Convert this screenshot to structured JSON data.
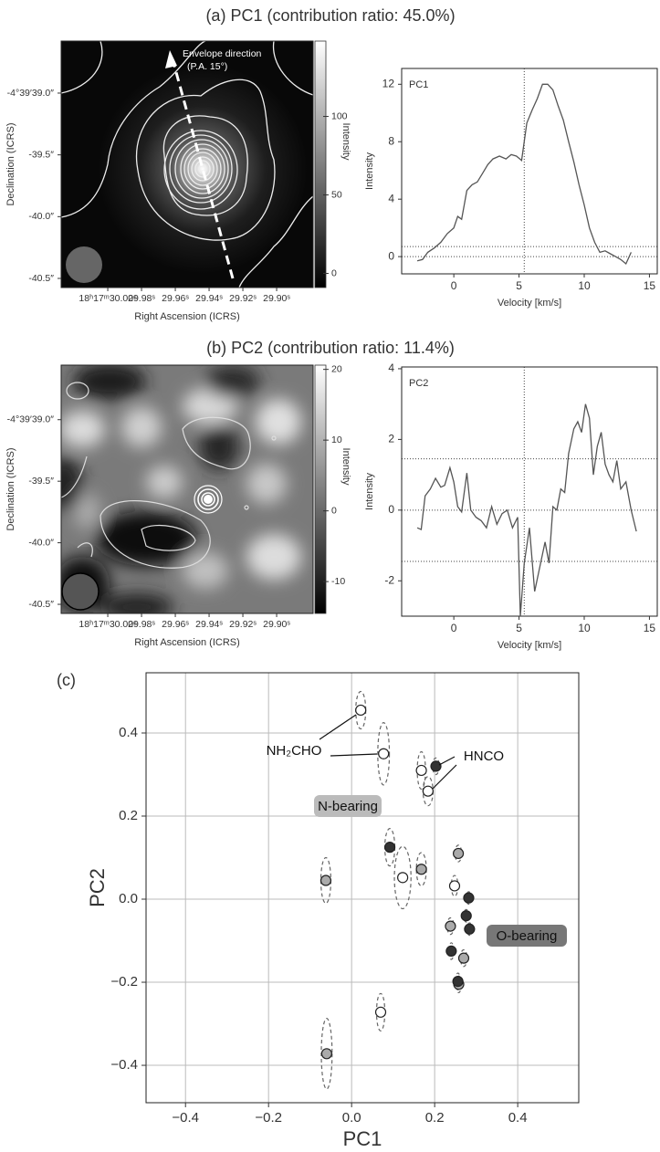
{
  "chart_data": [
    {
      "type": "image",
      "title": "(a) PC1 (contribution ratio: 45.0%)",
      "xlabel": "Right Ascension (ICRS)",
      "ylabel": "Declination (ICRS)",
      "xlim": [
        30.0276,
        29.8784
      ],
      "ylim": [
        40.574,
        38.579
      ],
      "xticks": [
        {
          "value": 30.0,
          "label": "18ʰ17ᵐ30.00ˢ"
        },
        {
          "value": 29.98,
          "label": "29.98ˢ"
        },
        {
          "value": 29.96,
          "label": "29.96ˢ"
        },
        {
          "value": 29.94,
          "label": "29.94ˢ"
        },
        {
          "value": 29.92,
          "label": "29.92ˢ"
        },
        {
          "value": 29.9,
          "label": "29.90ˢ"
        }
      ],
      "yticks": [
        {
          "value": 39.0,
          "label": "-4°39′39.0″"
        },
        {
          "value": 39.5,
          "label": "-39.5″"
        },
        {
          "value": 40.0,
          "label": "-40.0″"
        },
        {
          "value": 40.5,
          "label": "-40.5″"
        }
      ],
      "colorbar_label": "Intensity",
      "clim": [
        -9,
        148
      ],
      "cticks": [
        0,
        50,
        100
      ],
      "annotations": [
        "Envelope direction",
        "(P.A. 15°)"
      ]
    },
    {
      "type": "line",
      "label": "PC1",
      "xlabel": "Velocity [km/s]",
      "ylabel": "Intensity",
      "color": "#555555",
      "xlim": [
        -4,
        15.6
      ],
      "ylim": [
        -1.2,
        13.1
      ],
      "xticks": [
        0,
        5,
        10,
        15
      ],
      "yticks": [
        0,
        4,
        8,
        12
      ],
      "vlines": [
        5.4
      ],
      "hlines": [
        0,
        0.7
      ],
      "x": [
        -2.8,
        -2.4,
        -2,
        -1.5,
        -1,
        -0.5,
        0,
        0.3,
        0.6,
        1,
        1.4,
        1.8,
        2.2,
        2.6,
        3,
        3.5,
        4,
        4.4,
        4.8,
        5.2,
        5.6,
        6,
        6.4,
        6.8,
        7.2,
        7.6,
        8,
        8.4,
        8.8,
        9.2,
        9.6,
        10,
        10.4,
        10.8,
        11.2,
        11.6,
        12,
        12.4,
        12.8,
        13.2,
        13.6
      ],
      "y": [
        -0.3,
        -0.2,
        0.3,
        0.6,
        1.0,
        1.6,
        2.0,
        2.8,
        2.6,
        4.6,
        5.0,
        5.2,
        5.8,
        6.4,
        6.8,
        7.0,
        6.8,
        7.1,
        7.0,
        6.7,
        9.3,
        10.2,
        11.0,
        12.0,
        12.0,
        11.6,
        10.5,
        9.5,
        8.0,
        6.6,
        5.0,
        3.6,
        2.0,
        1.0,
        0.3,
        0.4,
        0.2,
        0.0,
        -0.2,
        -0.5,
        0.3
      ]
    },
    {
      "type": "image",
      "title": "(b) PC2 (contribution ratio: 11.4%)",
      "xlabel": "Right Ascension (ICRS)",
      "ylabel": "Declination (ICRS)",
      "xlim": [
        30.0276,
        29.8784
      ],
      "ylim": [
        40.574,
        38.557
      ],
      "xticks": [
        {
          "value": 30.0,
          "label": "18ʰ17ᵐ30.00ˢ"
        },
        {
          "value": 29.98,
          "label": "29.98ˢ"
        },
        {
          "value": 29.96,
          "label": "29.96ˢ"
        },
        {
          "value": 29.94,
          "label": "29.94ˢ"
        },
        {
          "value": 29.92,
          "label": "29.92ˢ"
        },
        {
          "value": 29.9,
          "label": "29.90ˢ"
        }
      ],
      "yticks": [
        {
          "value": 39.0,
          "label": "-4°39′39.0″"
        },
        {
          "value": 39.5,
          "label": "-39.5″"
        },
        {
          "value": 40.0,
          "label": "-40.0″"
        },
        {
          "value": 40.5,
          "label": "-40.5″"
        }
      ],
      "colorbar_label": "Intensity",
      "clim": [
        -14.5,
        20.6
      ],
      "cticks": [
        -10,
        0,
        10,
        20
      ]
    },
    {
      "type": "line",
      "label": "PC2",
      "xlabel": "Velocity [km/s]",
      "ylabel": "Intensity",
      "color": "#555555",
      "xlim": [
        -4,
        15.6
      ],
      "ylim": [
        -3,
        4.05
      ],
      "xticks": [
        0,
        5,
        10,
        15
      ],
      "yticks": [
        -2,
        0,
        2,
        4
      ],
      "vlines": [
        5.4
      ],
      "hlines": [
        0,
        1.45,
        -1.45
      ],
      "x": [
        -2.8,
        -2.5,
        -2.2,
        -1.8,
        -1.4,
        -1,
        -0.7,
        -0.3,
        0,
        0.3,
        0.6,
        1.0,
        1.3,
        1.7,
        2.1,
        2.5,
        2.9,
        3.3,
        3.7,
        4.1,
        4.5,
        4.9,
        5.1,
        5.4,
        5.8,
        6.2,
        6.6,
        7.0,
        7.3,
        7.6,
        7.9,
        8.2,
        8.5,
        8.8,
        9.2,
        9.5,
        9.8,
        10.1,
        10.4,
        10.7,
        11.0,
        11.3,
        11.6,
        11.9,
        12.2,
        12.5,
        12.8,
        13.2,
        13.6,
        14.0
      ],
      "y": [
        -0.5,
        -0.55,
        0.4,
        0.6,
        0.9,
        0.65,
        0.7,
        1.2,
        0.8,
        0.1,
        -0.05,
        1.05,
        0.0,
        -0.2,
        -0.3,
        -0.5,
        0.1,
        -0.4,
        -0.1,
        0.0,
        -0.5,
        -0.2,
        -3.0,
        -1.5,
        -0.5,
        -2.3,
        -1.6,
        -0.9,
        -1.5,
        0.1,
        0.0,
        0.6,
        0.5,
        1.6,
        2.3,
        2.5,
        2.2,
        3.0,
        2.6,
        1.0,
        1.8,
        2.2,
        1.3,
        1.0,
        0.8,
        1.4,
        0.6,
        0.8,
        0.0,
        -0.6
      ]
    },
    {
      "type": "scatter",
      "panel_label": "(c)",
      "xlabel": "PC1",
      "ylabel": "PC2",
      "grid": true,
      "xlim": [
        -0.495,
        0.547
      ],
      "ylim": [
        -0.49,
        0.545
      ],
      "xticks": [
        {
          "value": -0.4,
          "label": "−0.4"
        },
        {
          "value": -0.2,
          "label": "−0.2"
        },
        {
          "value": 0.0,
          "label": "0.0"
        },
        {
          "value": 0.2,
          "label": "0.2"
        },
        {
          "value": 0.4,
          "label": "0.4"
        }
      ],
      "yticks": [
        {
          "value": -0.4,
          "label": "−0.4"
        },
        {
          "value": -0.2,
          "label": "−0.2"
        },
        {
          "value": 0.0,
          "label": "0.0"
        },
        {
          "value": 0.2,
          "label": "0.2"
        },
        {
          "value": 0.4,
          "label": "0.4"
        }
      ],
      "series": [
        {
          "color": "#ffffff",
          "x": [
            0.022,
            0.077,
            0.168,
            0.184,
            0.123,
            0.248,
            0.07
          ],
          "y": [
            0.455,
            0.35,
            0.31,
            0.26,
            0.052,
            0.032,
            -0.272
          ],
          "xerr": [
            0.012,
            0.014,
            0.01,
            0.012,
            0.02,
            0.008,
            0.01
          ],
          "yerr": [
            0.045,
            0.075,
            0.045,
            0.035,
            0.075,
            0.025,
            0.045
          ]
        },
        {
          "color": "#aaaaaa",
          "x": [
            0.168,
            -0.062,
            0.257,
            0.238,
            0.27,
            -0.06,
            0.258
          ],
          "y": [
            0.072,
            0.045,
            0.11,
            -0.065,
            -0.142,
            -0.372,
            -0.205
          ],
          "xerr": [
            0.012,
            0.012,
            0.008,
            0.008,
            0.008,
            0.013,
            0.006
          ],
          "yerr": [
            0.04,
            0.055,
            0.02,
            0.02,
            0.02,
            0.085,
            0.02
          ]
        },
        {
          "color": "#333333",
          "x": [
            0.203,
            0.092,
            0.282,
            0.276,
            0.284,
            0.24,
            0.256
          ],
          "y": [
            0.32,
            0.125,
            0.003,
            -0.04,
            -0.072,
            -0.125,
            -0.198
          ],
          "xerr": [
            0.008,
            0.012,
            0.006,
            0.006,
            0.006,
            0.006,
            0.006
          ],
          "yerr": [
            0.02,
            0.045,
            0.015,
            0.015,
            0.015,
            0.02,
            0.02
          ]
        }
      ],
      "annotations": [
        "NH₂CHO",
        "HNCO",
        "N-bearing",
        "O-bearing"
      ]
    }
  ]
}
